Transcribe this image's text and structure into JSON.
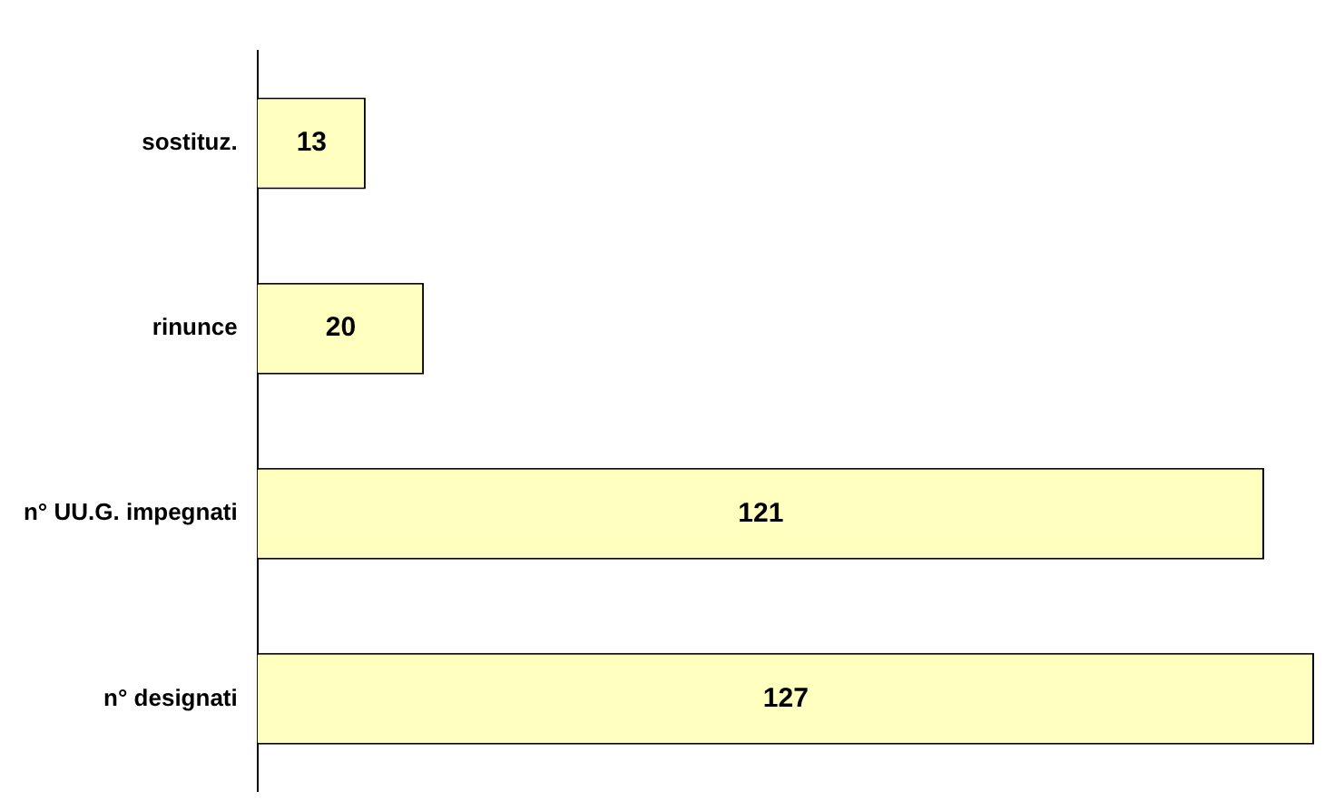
{
  "chart_data": {
    "type": "bar",
    "orientation": "horizontal",
    "categories": [
      "sostituz.",
      "rinunce",
      "n° UU.G. impegnati",
      "n° designati"
    ],
    "values": [
      13,
      20,
      121,
      127
    ],
    "color": "#ffffc0",
    "data_labels": true,
    "grid": false,
    "legend": false
  }
}
